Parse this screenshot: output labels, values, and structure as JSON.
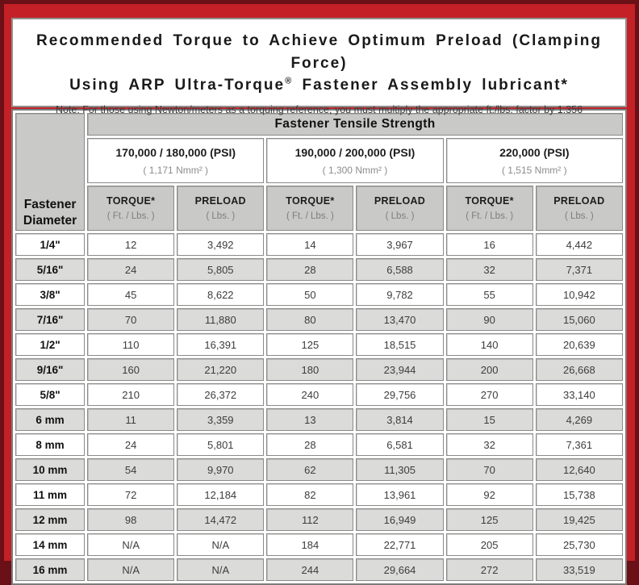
{
  "colors": {
    "outer_border": "#6b1016",
    "frame_red": "#c32127",
    "header_gray": "#c9c9c7",
    "row_gray": "#dbdbd9",
    "cell_border": "#8a8a8a"
  },
  "title": {
    "line1": "Recommended Torque to Achieve Optimum Preload (Clamping Force)",
    "line2_pre": "Using ARP Ultra-Torque",
    "line2_sup": "®",
    "line2_post": " Fastener Assembly lubricant*"
  },
  "note": "Note: For those using Newton/meters as a torquing reference, you must multiply the appropriate ft./lbs. factor by 1.356",
  "table": {
    "corner_line1": "Fastener",
    "corner_line2": "Diameter",
    "tensile_header": "Fastener Tensile Strength",
    "groups": [
      {
        "psi": "170,000 / 180,000 (PSI)",
        "nmm": "( 1,171 Nmm² )"
      },
      {
        "psi": "190,000 / 200,000 (PSI)",
        "nmm": "( 1,300 Nmm² )"
      },
      {
        "psi": "220,000 (PSI)",
        "nmm": "( 1,515 Nmm² )"
      }
    ],
    "col_headers": {
      "torque": "TORQUE*",
      "torque_sub": "( Ft. / Lbs. )",
      "preload": "PRELOAD",
      "preload_sub": "( Lbs. )"
    },
    "rows": [
      {
        "diameter": "1/4\"",
        "values": [
          "12",
          "3,492",
          "14",
          "3,967",
          "16",
          "4,442"
        ]
      },
      {
        "diameter": "5/16\"",
        "values": [
          "24",
          "5,805",
          "28",
          "6,588",
          "32",
          "7,371"
        ]
      },
      {
        "diameter": "3/8\"",
        "values": [
          "45",
          "8,622",
          "50",
          "9,782",
          "55",
          "10,942"
        ]
      },
      {
        "diameter": "7/16\"",
        "values": [
          "70",
          "11,880",
          "80",
          "13,470",
          "90",
          "15,060"
        ]
      },
      {
        "diameter": "1/2\"",
        "values": [
          "110",
          "16,391",
          "125",
          "18,515",
          "140",
          "20,639"
        ]
      },
      {
        "diameter": "9/16\"",
        "values": [
          "160",
          "21,220",
          "180",
          "23,944",
          "200",
          "26,668"
        ]
      },
      {
        "diameter": "5/8\"",
        "values": [
          "210",
          "26,372",
          "240",
          "29,756",
          "270",
          "33,140"
        ]
      },
      {
        "diameter": "6 mm",
        "values": [
          "11",
          "3,359",
          "13",
          "3,814",
          "15",
          "4,269"
        ]
      },
      {
        "diameter": "8 mm",
        "values": [
          "24",
          "5,801",
          "28",
          "6,581",
          "32",
          "7,361"
        ]
      },
      {
        "diameter": "10 mm",
        "values": [
          "54",
          "9,970",
          "62",
          "11,305",
          "70",
          "12,640"
        ]
      },
      {
        "diameter": "11 mm",
        "values": [
          "72",
          "12,184",
          "82",
          "13,961",
          "92",
          "15,738"
        ]
      },
      {
        "diameter": "12 mm",
        "values": [
          "98",
          "14,472",
          "112",
          "16,949",
          "125",
          "19,425"
        ]
      },
      {
        "diameter": "14 mm",
        "values": [
          "N/A",
          "N/A",
          "184",
          "22,771",
          "205",
          "25,730"
        ]
      },
      {
        "diameter": "16 mm",
        "values": [
          "N/A",
          "N/A",
          "244",
          "29,664",
          "272",
          "33,519"
        ]
      }
    ]
  }
}
